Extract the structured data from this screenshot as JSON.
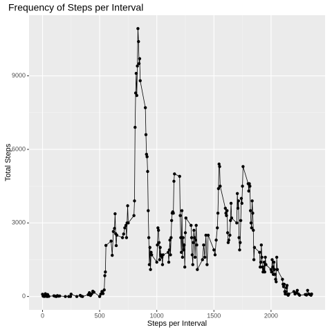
{
  "chart_data": {
    "type": "line",
    "title": "Frequency of Steps per Interval",
    "x_label": "Steps per Interval",
    "y_label": "Total Steps",
    "x": [
      0,
      5,
      10,
      15,
      20,
      25,
      30,
      35,
      40,
      45,
      50,
      55,
      100,
      110,
      120,
      130,
      140,
      150,
      200,
      230,
      245,
      250,
      300,
      330,
      340,
      350,
      400,
      410,
      420,
      430,
      440,
      450,
      500,
      510,
      520,
      530,
      540,
      545,
      550,
      555,
      600,
      610,
      620,
      630,
      635,
      640,
      645,
      650,
      700,
      710,
      720,
      730,
      735,
      740,
      745,
      750,
      800,
      805,
      810,
      815,
      820,
      825,
      830,
      835,
      840,
      845,
      850,
      855,
      900,
      905,
      910,
      915,
      920,
      925,
      930,
      935,
      940,
      945,
      950,
      955,
      1000,
      1005,
      1010,
      1015,
      1020,
      1025,
      1030,
      1035,
      1040,
      1045,
      1050,
      1055,
      1100,
      1105,
      1110,
      1115,
      1120,
      1125,
      1130,
      1135,
      1140,
      1145,
      1150,
      1155,
      1200,
      1205,
      1210,
      1215,
      1220,
      1225,
      1230,
      1235,
      1240,
      1245,
      1250,
      1255,
      1300,
      1305,
      1310,
      1315,
      1320,
      1325,
      1330,
      1335,
      1340,
      1345,
      1350,
      1355,
      1400,
      1410,
      1420,
      1430,
      1440,
      1450,
      1500,
      1510,
      1520,
      1530,
      1535,
      1540,
      1545,
      1550,
      1555,
      1600,
      1605,
      1610,
      1615,
      1620,
      1625,
      1630,
      1640,
      1645,
      1650,
      1655,
      1700,
      1705,
      1710,
      1715,
      1720,
      1725,
      1730,
      1735,
      1740,
      1745,
      1750,
      1755,
      1800,
      1805,
      1810,
      1815,
      1820,
      1825,
      1830,
      1835,
      1840,
      1845,
      1850,
      1855,
      1900,
      1905,
      1910,
      1915,
      1920,
      1925,
      1930,
      1935,
      1940,
      1945,
      1950,
      1955,
      2000,
      2005,
      2010,
      2015,
      2020,
      2025,
      2030,
      2035,
      2040,
      2045,
      2050,
      2055,
      2100,
      2105,
      2110,
      2115,
      2120,
      2125,
      2130,
      2135,
      2140,
      2145,
      2150,
      2155,
      2200,
      2210,
      2220,
      2230,
      2240,
      2250,
      2300,
      2310,
      2320,
      2330,
      2340,
      2350,
      2355
    ],
    "series": [
      {
        "color": "#000000",
        "values": [
          91,
          18,
          7,
          8,
          4,
          111,
          28,
          46,
          0,
          78,
          16,
          7,
          27,
          11,
          0,
          33,
          12,
          21,
          0,
          0,
          0,
          93,
          0,
          46,
          10,
          0,
          72,
          154,
          42,
          106,
          213,
          176,
          0,
          99,
          203,
          117,
          267,
          850,
          1001,
          2082,
          2258,
          1679,
          2650,
          2776,
          3375,
          2562,
          2075,
          2500,
          2400,
          2550,
          2800,
          2900,
          2400,
          3000,
          3700,
          3000,
          3300,
          3900,
          6900,
          8300,
          9100,
          8200,
          9400,
          10927,
          10400,
          9500,
          9700,
          8800,
          7700,
          6600,
          5800,
          5700,
          5100,
          3500,
          2400,
          1300,
          2000,
          1100,
          1800,
          1700,
          1400,
          2100,
          2800,
          2700,
          2200,
          1500,
          2000,
          1700,
          1650,
          1600,
          1300,
          1700,
          1800,
          1400,
          1900,
          2300,
          1700,
          2400,
          3100,
          3400,
          3450,
          3400,
          4700,
          5000,
          4900,
          3300,
          2400,
          1800,
          3500,
          1600,
          2400,
          1900,
          2100,
          1200,
          2600,
          3200,
          2900,
          2400,
          1700,
          1300,
          2200,
          2700,
          2400,
          1600,
          2300,
          2900,
          2100,
          1100,
          1500,
          2100,
          1600,
          2500,
          1300,
          2500,
          1900,
          1700,
          2300,
          2800,
          3400,
          4400,
          5400,
          5300,
          4500,
          3600,
          3400,
          3300,
          3500,
          2600,
          2200,
          2300,
          2500,
          3100,
          3800,
          3200,
          3000,
          4200,
          3600,
          3900,
          2400,
          1900,
          2200,
          3100,
          4000,
          3800,
          4500,
          5300,
          4600,
          4300,
          4600,
          4500,
          3500,
          3000,
          2800,
          3900,
          3400,
          2700,
          1500,
          2000,
          1800,
          1200,
          1400,
          2100,
          1600,
          1200,
          1000,
          1100,
          1400,
          1000,
          1600,
          1300,
          1100,
          1000,
          1500,
          1200,
          900,
          1400,
          1100,
          900,
          700,
          600,
          1600,
          1100,
          700,
          500,
          400,
          500,
          200,
          100,
          200,
          350,
          450,
          80,
          50,
          100,
          200,
          100,
          150,
          250,
          100,
          50,
          80,
          60,
          250,
          100,
          80,
          50,
          100
        ]
      }
    ],
    "xlim": [
      -118,
      2473
    ],
    "ylim": [
      -546,
      11473
    ],
    "xticks": [
      0,
      500,
      1000,
      1500,
      2000
    ],
    "yticks": [
      0,
      3000,
      6000,
      9000
    ],
    "grid": true
  }
}
